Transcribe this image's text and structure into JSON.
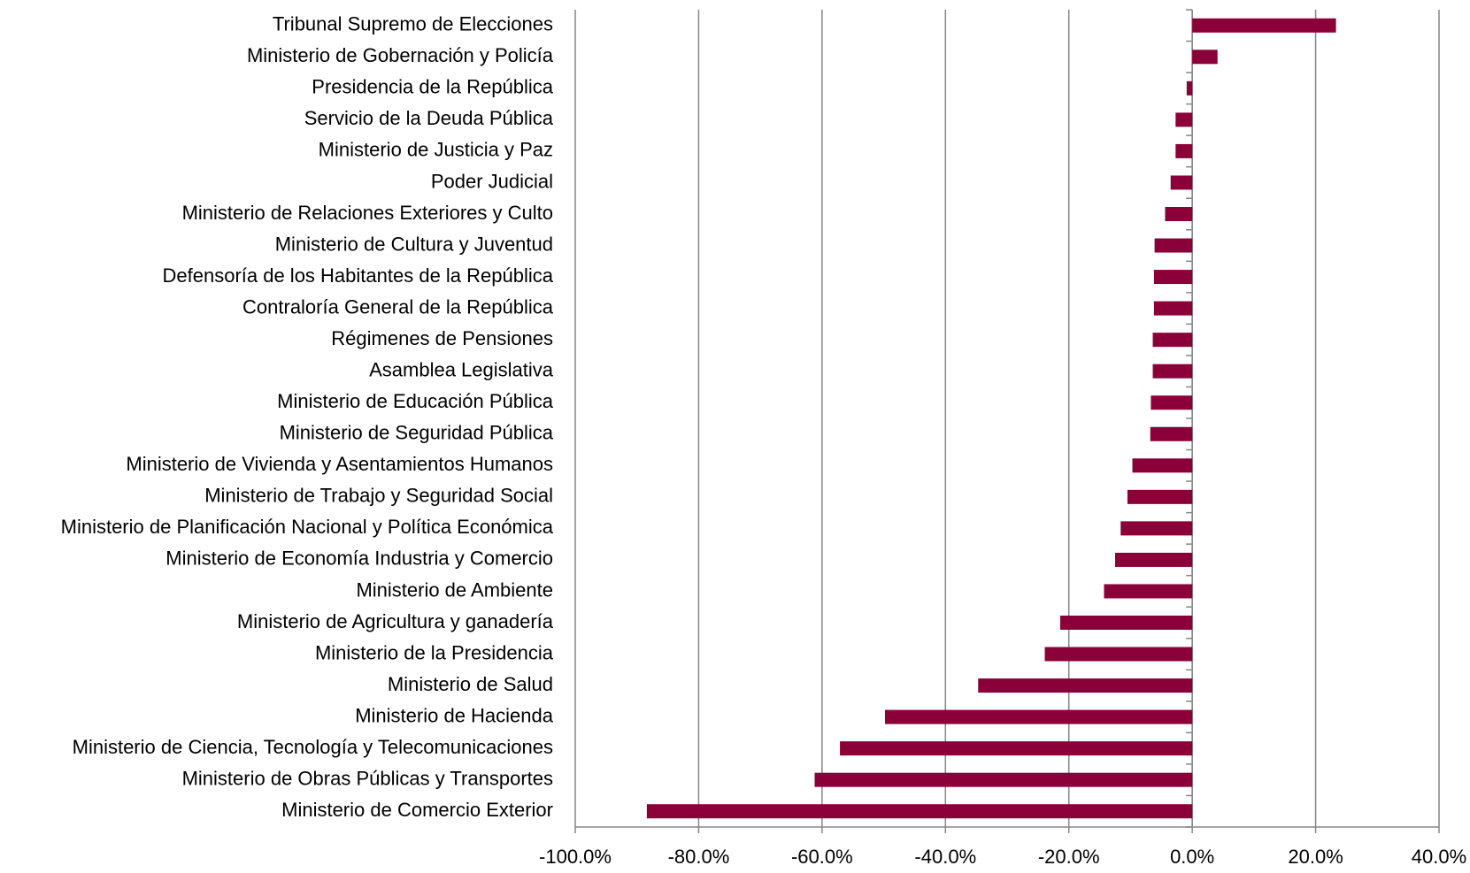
{
  "chart_data": {
    "type": "hbar",
    "categories": [
      "Tribunal Supremo de Elecciones",
      "Ministerio de Gobernación y Policía",
      "Presidencia de la República",
      "Servicio de la Deuda Pública",
      "Ministerio de Justicia y Paz",
      "Poder Judicial",
      "Ministerio de Relaciones Exteriores y Culto",
      "Ministerio de Cultura y Juventud",
      "Defensoría de los Habitantes de la República",
      "Contraloría General de la República",
      "Régimenes de Pensiones",
      "Asamblea Legislativa",
      "Ministerio de Educación Pública",
      "Ministerio de Seguridad Pública",
      "Ministerio de Vivienda y Asentamientos Humanos",
      "Ministerio de Trabajo y Seguridad Social",
      "Ministerio de Planificación Nacional y Política Económica",
      "Ministerio de Economía Industria y Comercio",
      "Ministerio de Ambiente",
      "Ministerio de Agricultura y ganadería",
      "Ministerio de la Presidencia",
      "Ministerio de Salud",
      "Ministerio de Hacienda",
      "Ministerio de Ciencia, Tecnología y Telecomunicaciones",
      "Ministerio de Obras Públicas y Transportes",
      "Ministerio de Comercio Exterior"
    ],
    "values": [
      23.3,
      4.1,
      -0.9,
      -2.7,
      -2.7,
      -3.5,
      -4.4,
      -6.1,
      -6.2,
      -6.2,
      -6.4,
      -6.4,
      -6.7,
      -6.8,
      -9.7,
      -10.5,
      -11.6,
      -12.5,
      -14.3,
      -21.4,
      -23.9,
      -34.7,
      -49.8,
      -57.1,
      -61.2,
      -88.4
    ],
    "color": "#8b0038",
    "xlim": [
      -100,
      40
    ],
    "xticks": [
      {
        "value": -100,
        "label": "-100.0%"
      },
      {
        "value": -80,
        "label": "-80.0%"
      },
      {
        "value": -60,
        "label": "-60.0%"
      },
      {
        "value": -40,
        "label": "-40.0%"
      },
      {
        "value": -20,
        "label": "-20.0%"
      },
      {
        "value": 0,
        "label": "0.0%"
      },
      {
        "value": 20,
        "label": "20.0%"
      },
      {
        "value": 40,
        "label": "40.0%"
      }
    ],
    "grid": true
  }
}
